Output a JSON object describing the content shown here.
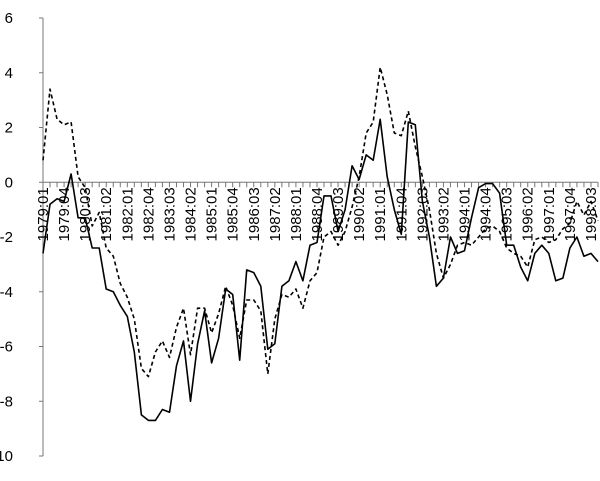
{
  "chart_data": {
    "type": "line",
    "title": "",
    "xlabel": "",
    "ylabel": "",
    "ylim": [
      -10,
      6
    ],
    "yticks": [
      6,
      4,
      2,
      0,
      -2,
      -4,
      -6,
      -8,
      -10
    ],
    "x_tick_labels": [
      "1979:01",
      "1979:04",
      "1980:03",
      "1981:02",
      "1982:01",
      "1982:04",
      "1983:03",
      "1984:02",
      "1985:01",
      "1985:04",
      "1986:03",
      "1987:02",
      "1988:01",
      "1988:04",
      "1989:03",
      "1990:02",
      "1991:01",
      "1991:04",
      "1992:03",
      "1993:02",
      "1994:01",
      "1994:04",
      "1995:03",
      "1996:02",
      "1997:01",
      "1997:04",
      "1998:03"
    ],
    "n_points": 80,
    "grid": false,
    "legend": "none",
    "series": [
      {
        "style": "solid",
        "color": "#000000",
        "values": [
          -2.6,
          -0.8,
          -0.6,
          -0.7,
          0.3,
          -1.3,
          -1.3,
          -2.4,
          -2.4,
          -3.9,
          -4.0,
          -4.5,
          -4.9,
          -6.2,
          -8.5,
          -8.7,
          -8.7,
          -8.3,
          -8.4,
          -6.7,
          -5.8,
          -8.0,
          -5.9,
          -4.7,
          -6.6,
          -5.7,
          -3.9,
          -4.1,
          -6.5,
          -3.2,
          -3.3,
          -3.8,
          -6.1,
          -5.9,
          -3.8,
          -3.6,
          -2.9,
          -3.6,
          -2.3,
          -2.2,
          -0.5,
          -0.5,
          -1.8,
          -1.0,
          0.6,
          0.1,
          1.0,
          0.8,
          2.3,
          0.2,
          -1.0,
          -1.9,
          2.2,
          2.1,
          -0.7,
          -2.0,
          -3.8,
          -3.5,
          -2.0,
          -2.6,
          -2.5,
          -1.3,
          -0.2,
          -0.05,
          -0.05,
          -0.4,
          -2.3,
          -2.3,
          -3.1,
          -3.6,
          -2.6,
          -2.3,
          -2.6,
          -3.6,
          -3.5,
          -2.4,
          -2.0,
          -2.7,
          -2.6,
          -2.9
        ]
      },
      {
        "style": "dashed",
        "color": "#000000",
        "values": [
          0.8,
          3.4,
          2.3,
          2.1,
          2.2,
          0.2,
          -0.2,
          -1.6,
          -1.1,
          -2.4,
          -2.7,
          -3.7,
          -4.2,
          -5.0,
          -6.8,
          -7.1,
          -6.2,
          -5.8,
          -6.4,
          -5.3,
          -4.6,
          -6.3,
          -4.6,
          -4.6,
          -5.5,
          -4.8,
          -3.8,
          -4.5,
          -5.7,
          -4.3,
          -4.3,
          -4.7,
          -7.0,
          -5.0,
          -4.1,
          -4.2,
          -3.9,
          -4.6,
          -3.6,
          -3.3,
          -2.0,
          -1.8,
          -2.3,
          -1.8,
          -0.9,
          0.2,
          1.8,
          2.2,
          4.2,
          3.2,
          1.8,
          1.7,
          2.6,
          1.3,
          0.2,
          -1.0,
          -2.6,
          -3.5,
          -3.0,
          -2.3,
          -2.2,
          -2.3,
          -2.0,
          -1.7,
          -1.6,
          -1.8,
          -2.4,
          -2.6,
          -2.7,
          -3.1,
          -2.1,
          -2.0,
          -2.2,
          -2.1,
          -1.7,
          -1.5,
          -0.7,
          -1.2,
          -0.7,
          -1.4
        ]
      }
    ]
  }
}
